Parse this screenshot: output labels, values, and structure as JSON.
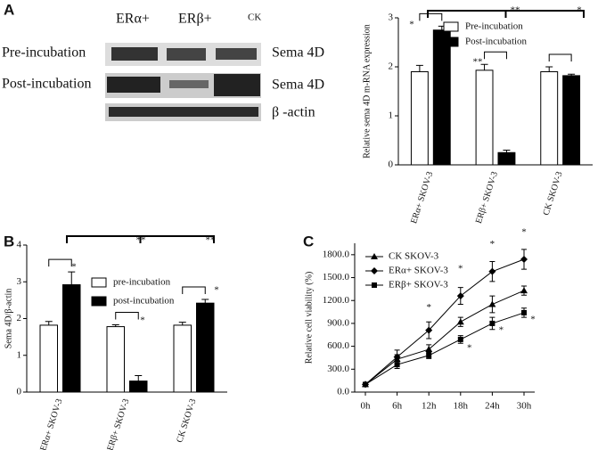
{
  "panel_labels": [
    "A",
    "B",
    "C"
  ],
  "blot": {
    "columns": [
      "ERα+",
      "ERβ+",
      "CK"
    ],
    "rows": [
      "Pre-incubation",
      "Post-incubation"
    ],
    "proteins": [
      "Sema 4D",
      "Sema 4D",
      "β -actin"
    ]
  },
  "chart_data": [
    {
      "type": "bar",
      "ylabel": "Relative sema 4D m-RNA expression",
      "categories": [
        "ERα+ SKOV-3",
        "ERβ+ SKOV-3",
        "CK SKOV-3"
      ],
      "series": [
        {
          "name": "Pre-incubation",
          "color": "#ffffff",
          "values": [
            1.9,
            1.93,
            1.9
          ],
          "errors": [
            0.13,
            0.12,
            0.1
          ]
        },
        {
          "name": "Post-incubation",
          "color": "#000000",
          "values": [
            2.75,
            0.25,
            1.82
          ],
          "errors": [
            0.08,
            0.05,
            0.03
          ]
        }
      ],
      "ylim": [
        0,
        3
      ],
      "yticks": [
        0,
        1,
        2,
        3
      ],
      "annotations": [
        "*",
        "**",
        "**",
        "*"
      ]
    },
    {
      "type": "bar",
      "ylabel": "Sema 4D/β-actin",
      "categories": [
        "ERα+ SKOV-3",
        "ERβ+ SKOV-3",
        "CK SKOV-3"
      ],
      "series": [
        {
          "name": "pre-incubation",
          "color": "#ffffff",
          "values": [
            1.82,
            1.78,
            1.82
          ],
          "errors": [
            0.1,
            0.05,
            0.08
          ]
        },
        {
          "name": "post-incubation",
          "color": "#000000",
          "values": [
            2.92,
            0.3,
            2.42
          ],
          "errors": [
            0.35,
            0.15,
            0.1
          ]
        }
      ],
      "ylim": [
        0,
        4
      ],
      "yticks": [
        0,
        1,
        2,
        3,
        4
      ],
      "annotations": [
        "*",
        "**",
        "*",
        "**",
        "*"
      ]
    },
    {
      "type": "line",
      "ylabel": "Relative cell viability (%)",
      "categories": [
        "0h",
        "6h",
        "12h",
        "18h",
        "24h",
        "30h"
      ],
      "series": [
        {
          "name": "CK SKOV-3",
          "color": "#000000",
          "marker": "triangle",
          "values": [
            100,
            430,
            560,
            920,
            1150,
            1330
          ],
          "errors": [
            20,
            60,
            60,
            60,
            110,
            60
          ]
        },
        {
          "name": "ERα+ SKOV-3",
          "color": "#000000",
          "marker": "diamond",
          "values": [
            100,
            460,
            810,
            1260,
            1580,
            1740
          ],
          "errors": [
            20,
            90,
            110,
            110,
            130,
            130
          ]
        },
        {
          "name": "ERβ+ SKOV-3",
          "color": "#000000",
          "marker": "square",
          "values": [
            100,
            360,
            480,
            690,
            900,
            1040
          ],
          "errors": [
            20,
            50,
            40,
            50,
            80,
            60
          ]
        }
      ],
      "ylim": [
        0,
        1950
      ],
      "yticks": [
        {
          "value": 0,
          "label": "0.0"
        },
        {
          "value": 300,
          "label": "300.0"
        },
        {
          "value": 600,
          "label": "600.0"
        },
        {
          "value": 900,
          "label": "900.0"
        },
        {
          "value": 1200,
          "label": "1200.0"
        },
        {
          "value": 1500,
          "label": "1500.0"
        },
        {
          "value": 1800,
          "label": "1800.0"
        }
      ],
      "annotations": [
        "*",
        "*",
        "*",
        "*",
        "*",
        "*",
        "*"
      ]
    }
  ]
}
